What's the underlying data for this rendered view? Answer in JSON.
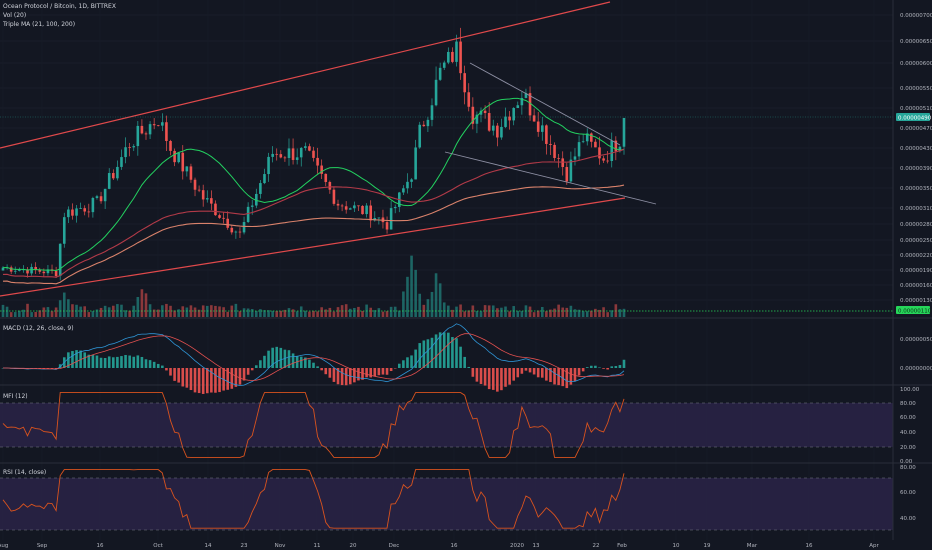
{
  "colors": {
    "background": "#131722",
    "up": "#26a69a",
    "down": "#ef5350",
    "channel": "#e0494b",
    "ma_short": "#23d160",
    "ma_mid": "#b23a48",
    "ma_long": "#d9826b",
    "wedge": "#8d8fa3",
    "macd_line": "#2f95d6",
    "signal_line": "#e2504f",
    "mfi_line": "#d9531e",
    "rsi_line": "#d9531e",
    "band": "#2a2346",
    "price_highlight": "#26a69a",
    "volume_highlight": "#26d65a"
  },
  "main_pane": {
    "title_line": "Ocean Protocol / Bitcoin, 1D, BITTREX",
    "indicator_1": "Vol (20)",
    "indicator_2": "Triple MA (21, 100, 200)",
    "axis_ticks": [
      "0.00000700",
      "0.00000650",
      "0.00000600",
      "0.00000550",
      "0.00000510",
      "0.00000470",
      "0.00000430",
      "0.00000390",
      "0.00000350",
      "0.00000310",
      "0.00000280",
      "0.00000250",
      "0.00000220",
      "0.00000190",
      "0.00000160",
      "0.00000130"
    ],
    "last_price": "0.00000490",
    "volume_label": "0.00000110"
  },
  "macd_pane": {
    "title": "MACD (12, 26, close, 9)",
    "axis_ticks": [
      "0.00000050",
      "0.00000000"
    ]
  },
  "mfi_pane": {
    "title": "MFI (12)",
    "axis_ticks": [
      "100.00",
      "80.00",
      "60.00",
      "40.00",
      "20.00",
      "0.00"
    ]
  },
  "rsi_pane": {
    "title": "RSI (14, close)",
    "axis_ticks": [
      "80.00",
      "60.00",
      "40.00"
    ]
  },
  "time_axis": {
    "labels": [
      "Aug",
      "Sep",
      "16",
      "Oct",
      "14",
      "23",
      "Nov",
      "11",
      "20",
      "Dec",
      "16",
      "2020",
      "13",
      "22",
      "Feb",
      "10",
      "19",
      "Mar",
      "16",
      "Apr"
    ]
  },
  "chart_data": {
    "type": "candlestick",
    "title": "Ocean Protocol / Bitcoin, 1D, BITTREX",
    "unit": "BTC",
    "ylim": [
      1.1e-06,
      7.3e-06
    ],
    "x_dates": {
      "start": "2019-08-28",
      "end": "2020-01-27"
    },
    "close_anchors": [
      {
        "date": "2019-08-28",
        "close": 1.95e-06
      },
      {
        "date": "2019-09-10",
        "close": 1.85e-06
      },
      {
        "date": "2019-09-12",
        "close": 3e-06
      },
      {
        "date": "2019-09-20",
        "close": 3.2e-06
      },
      {
        "date": "2019-09-28",
        "close": 4.4e-06
      },
      {
        "date": "2019-10-05",
        "close": 4.9e-06
      },
      {
        "date": "2019-10-08",
        "close": 4.3e-06
      },
      {
        "date": "2019-10-16",
        "close": 3.3e-06
      },
      {
        "date": "2019-10-25",
        "close": 2.6e-06
      },
      {
        "date": "2019-11-02",
        "close": 4.2e-06
      },
      {
        "date": "2019-11-10",
        "close": 4.2e-06
      },
      {
        "date": "2019-11-18",
        "close": 3.2e-06
      },
      {
        "date": "2019-11-26",
        "close": 3e-06
      },
      {
        "date": "2019-11-30",
        "close": 2.8e-06
      },
      {
        "date": "2019-12-06",
        "close": 3.8e-06
      },
      {
        "date": "2019-12-08",
        "close": 4.6e-06
      },
      {
        "date": "2019-12-13",
        "close": 5.8e-06
      },
      {
        "date": "2019-12-17",
        "close": 6.3e-06
      },
      {
        "date": "2019-12-21",
        "close": 5e-06
      },
      {
        "date": "2019-12-27",
        "close": 4.7e-06
      },
      {
        "date": "2020-01-02",
        "close": 5.4e-06
      },
      {
        "date": "2020-01-07",
        "close": 4.7e-06
      },
      {
        "date": "2020-01-13",
        "close": 3.8e-06
      },
      {
        "date": "2020-01-17",
        "close": 4.5e-06
      },
      {
        "date": "2020-01-22",
        "close": 4.1e-06
      },
      {
        "date": "2020-01-26",
        "close": 4.5e-06
      },
      {
        "date": "2020-01-27",
        "close": 4.9e-06
      }
    ],
    "volume_peaks": [
      {
        "date": "2019-09-12",
        "volume": 2e-07
      },
      {
        "date": "2019-10-01",
        "volume": 2.5e-07
      },
      {
        "date": "2019-12-06",
        "volume": 5e-07
      },
      {
        "date": "2019-12-12",
        "volume": 3.5e-07
      }
    ],
    "lines": [
      "Triple MA 21",
      "Triple MA 100",
      "Triple MA 200",
      "Ascending channel",
      "Falling wedge"
    ],
    "macd_range": [
      -2.5e-07,
      7.5e-07
    ],
    "mfi_range": [
      0,
      100
    ],
    "rsi_range": [
      20,
      80
    ],
    "grid": true,
    "legend": "top-left"
  }
}
